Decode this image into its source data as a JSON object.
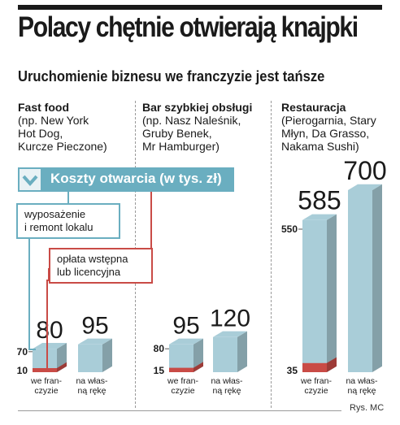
{
  "header": {
    "title": "Polacy chętnie otwierają knajpki",
    "subtitle": "Uruchomienie biznesu we franczyzie jest tańsze"
  },
  "legend": {
    "title": "Koszty otwarcia (w tys. zł)",
    "renovation_label": "wyposażenie\ni remont lokalu",
    "fee_label": "opłata wstępna\nlub licencyjna"
  },
  "credit": "Rys. MC",
  "colors": {
    "bar_blue": "#a9cdd8",
    "fee_red": "#c94b46",
    "accent": "#6aaec0"
  },
  "chart_data": {
    "type": "bar",
    "groups": [
      {
        "title": "Fast food",
        "examples": "(np. New York\nHot Dog,\nKurcze Pieczone)",
        "bars": [
          {
            "label": "we fran-\nczyzie",
            "total": 80,
            "renovation": 70,
            "fee": 10
          },
          {
            "label": "na włas-\nną rękę",
            "total": 95
          }
        ]
      },
      {
        "title": "Bar szybkiej obsługi",
        "examples": "(np. Nasz Naleśnik,\nGruby Benek,\nMr Hamburger)",
        "bars": [
          {
            "label": "we fran-\nczyzie",
            "total": 95,
            "renovation": 80,
            "fee": 15
          },
          {
            "label": "na włas-\nną rękę",
            "total": 120
          }
        ]
      },
      {
        "title": "Restauracja",
        "examples": "(Pierogarnia, Stary\nMłyn, Da Grasso,\nNakama Sushi)",
        "bars": [
          {
            "label": "we fran-\nczyzie",
            "total": 585,
            "renovation": 550,
            "fee": 35
          },
          {
            "label": "na włas-\nną rękę",
            "total": 700
          }
        ]
      }
    ]
  }
}
